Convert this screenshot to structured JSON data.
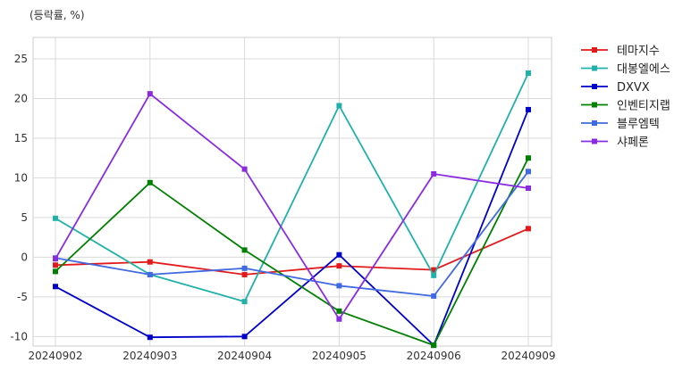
{
  "chart_data": {
    "type": "line",
    "title": "",
    "unit_label": "(등락률, %)",
    "xlabel": "",
    "ylabel": "",
    "categories": [
      "20240902",
      "20240903",
      "20240904",
      "20240905",
      "20240906",
      "20240909"
    ],
    "yticks": [
      -10,
      -5,
      0,
      5,
      10,
      15,
      20,
      25
    ],
    "ylim": [
      -11.2,
      27.7
    ],
    "grid": true,
    "legend_position": "outside-top-right",
    "series": [
      {
        "name": "테마지수",
        "color": "#e31a1c",
        "values": [
          -1.0,
          -0.6,
          -2.2,
          -1.1,
          -1.6,
          3.6
        ]
      },
      {
        "name": "대봉엘에스",
        "color": "#20b2aa",
        "values": [
          4.9,
          -2.2,
          -5.6,
          19.1,
          -2.3,
          23.2
        ]
      },
      {
        "name": "DXVX",
        "color": "#0000cd",
        "values": [
          -3.7,
          -10.1,
          -10.0,
          0.3,
          -11.1,
          18.6
        ]
      },
      {
        "name": "인벤티지랩",
        "color": "#008000",
        "values": [
          -1.8,
          9.4,
          0.9,
          -6.8,
          -11.1,
          12.5
        ]
      },
      {
        "name": "블루엠텍",
        "color": "#4169e1",
        "values": [
          -0.1,
          -2.2,
          -1.4,
          -3.6,
          -4.9,
          10.8
        ]
      },
      {
        "name": "샤페론",
        "color": "#8a2be2",
        "values": [
          -0.2,
          20.6,
          11.1,
          -7.8,
          10.5,
          8.7
        ]
      }
    ]
  }
}
